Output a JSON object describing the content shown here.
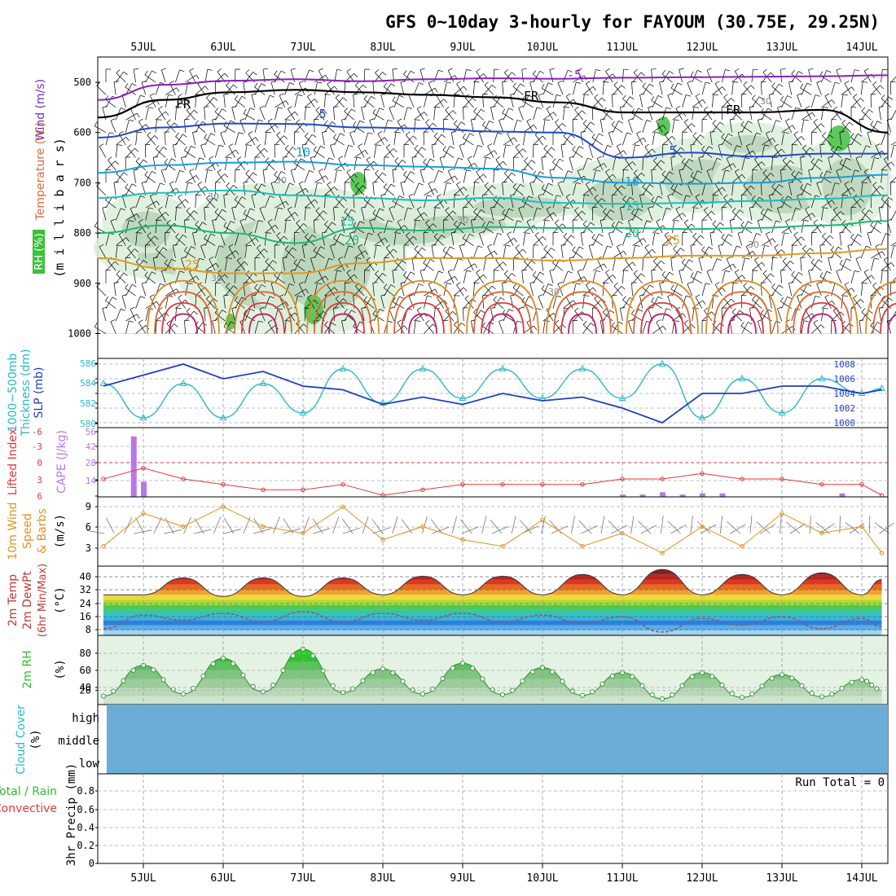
{
  "title": "GFS 0~10day 3-hourly for FAYOUM (30.75E, 29.25N)",
  "date_labels": [
    "5JUL",
    "6JUL",
    "7JUL",
    "8JUL",
    "9JUL",
    "10JUL",
    "11JUL",
    "12JUL",
    "13JUL",
    "14JUL"
  ],
  "colors": {
    "freezing": "#000000",
    "iso_m5": "#8a1fbf",
    "iso_5": "#1f49c9",
    "iso_10": "#159ee0",
    "iso_15": "#19bfbf",
    "iso_20": "#19b87a",
    "iso_25": "#e09a1f",
    "slp": "#1f3fbf",
    "thickness": "#2ab8c8",
    "lifted_index": "#e03a3a",
    "cape": "#b877e8",
    "wind": "#e0921f",
    "rh": "#2fbf2f",
    "cloud": "#6aaed8"
  },
  "panels": {
    "upper": {
      "ylabels": [
        "Wind (m/s)",
        "Temperature (°C)",
        "RH (%)",
        "(m i l l i b a r s)"
      ],
      "pressure_levels": [
        500,
        600,
        700,
        800,
        900,
        1000
      ],
      "contour_labels": {
        "freezing": "FR",
        "iso_m5": "-5",
        "iso_5": "5",
        "iso_10": "10",
        "iso_15": "15",
        "iso_20": "20",
        "iso_25": "25",
        "rh_30": "30"
      }
    },
    "slp": {
      "ylabels": [
        "1000~500mb",
        "Thickness (dm)",
        "SLP (mb)"
      ],
      "left_ticks": [
        "586",
        "584",
        "582",
        "580"
      ],
      "right_ticks": [
        "1008",
        "1006",
        "1004",
        "1002",
        "1000"
      ]
    },
    "cape": {
      "ylabels": [
        "Lifted Index",
        "CAPE (J/kg)"
      ],
      "left_ticks": [
        "-6",
        "-3",
        "0",
        "3",
        "6"
      ],
      "right_ticks": [
        "56",
        "42",
        "28",
        "14"
      ]
    },
    "wind10m": {
      "ylabels": [
        "10m Wind",
        "Speed",
        "& Barbs",
        "(m/s)"
      ],
      "ticks": [
        "9",
        "6",
        "3"
      ]
    },
    "temp2m": {
      "ylabels": [
        "2m Temp",
        "2m DewPt",
        "(6hr Min/Max)",
        "(°C)"
      ],
      "ticks": [
        "40",
        "32",
        "24",
        "16",
        "8"
      ]
    },
    "rh2m": {
      "ylabels": [
        "2m RH",
        "(%)"
      ],
      "ticks": [
        "80",
        "60",
        "40",
        "20"
      ]
    },
    "cloud": {
      "ylabels": [
        "Cloud Cover",
        "(%)"
      ],
      "levels": [
        "high",
        "middle",
        "low"
      ]
    },
    "precip": {
      "ylabels": [
        "Total / Rain",
        "Convective",
        "3hr Precip (mm)"
      ],
      "ticks": [
        "0.8",
        "0.6",
        "0.4",
        "0.2",
        "0"
      ],
      "run_total": "Run Total = 0"
    }
  },
  "chart_data": [
    {
      "type": "line",
      "name": "slp",
      "x": [
        "4JUL12",
        "5JUL00",
        "5JUL12",
        "6JUL00",
        "6JUL12",
        "7JUL00",
        "7JUL12",
        "8JUL00",
        "8JUL12",
        "9JUL00",
        "9JUL12",
        "10JUL00",
        "10JUL12",
        "11JUL00",
        "11JUL12",
        "12JUL00",
        "12JUL12",
        "13JUL00",
        "13JUL12",
        "14JUL00",
        "14JUL06"
      ],
      "values": [
        1005,
        1006.5,
        1008,
        1006,
        1007,
        1005,
        1004.5,
        1002.5,
        1003.5,
        1002.5,
        1004,
        1003,
        1003.5,
        1002,
        1000,
        1004,
        1004,
        1005,
        1005,
        1004,
        1004.5
      ],
      "ylim": [
        1000,
        1008
      ]
    },
    {
      "type": "line",
      "name": "thickness",
      "x": [
        "4JUL12",
        "5JUL00",
        "5JUL12",
        "6JUL00",
        "6JUL12",
        "7JUL00",
        "7JUL12",
        "8JUL00",
        "8JUL12",
        "9JUL00",
        "9JUL12",
        "10JUL00",
        "10JUL12",
        "11JUL00",
        "11JUL12",
        "12JUL00",
        "12JUL12",
        "13JUL00",
        "13JUL12",
        "14JUL00",
        "14JUL06"
      ],
      "values": [
        584,
        580.5,
        584,
        580.5,
        584,
        581,
        585.5,
        582,
        585.5,
        582.5,
        585.5,
        582.5,
        585.5,
        582.5,
        586,
        580.5,
        584.5,
        581,
        584.5,
        583,
        583.5
      ],
      "ylim": [
        580,
        586
      ]
    },
    {
      "type": "bar",
      "name": "cape",
      "x": [
        "4JUL21",
        "5JUL00",
        "11JUL00",
        "11JUL06",
        "11JUL12",
        "11JUL18",
        "12JUL00",
        "12JUL06",
        "13JUL18"
      ],
      "values": [
        52,
        13,
        2,
        2,
        4,
        2,
        3,
        3,
        3
      ],
      "ylim": [
        0,
        56
      ]
    },
    {
      "type": "line",
      "name": "lifted_index",
      "x": [
        "4JUL12",
        "5JUL00",
        "5JUL12",
        "6JUL00",
        "6JUL12",
        "7JUL00",
        "7JUL12",
        "8JUL00",
        "8JUL12",
        "9JUL00",
        "9JUL12",
        "10JUL00",
        "10JUL12",
        "11JUL00",
        "11JUL12",
        "12JUL00",
        "12JUL12",
        "13JUL00",
        "13JUL12",
        "14JUL00",
        "14JUL06"
      ],
      "values": [
        3,
        1,
        3,
        4,
        5,
        5,
        4,
        6,
        5,
        4,
        4,
        4,
        4,
        3,
        3,
        2,
        3,
        3,
        4,
        4,
        6
      ],
      "ylim": [
        6,
        -6
      ]
    },
    {
      "type": "line",
      "name": "wind_speed_10m",
      "x": [
        "4JUL12",
        "5JUL00",
        "5JUL12",
        "6JUL00",
        "6JUL12",
        "7JUL00",
        "7JUL12",
        "8JUL00",
        "8JUL12",
        "9JUL00",
        "9JUL12",
        "10JUL00",
        "10JUL12",
        "11JUL00",
        "11JUL12",
        "12JUL00",
        "12JUL12",
        "13JUL00",
        "13JUL12",
        "14JUL00",
        "14JUL06"
      ],
      "values": [
        3,
        8,
        6,
        9,
        6,
        5,
        9,
        4,
        6,
        4,
        3,
        7,
        3,
        5,
        2,
        6,
        3,
        8,
        5,
        6,
        2
      ],
      "ylim": [
        0,
        10.5
      ]
    },
    {
      "type": "area",
      "name": "temp_2m",
      "x": [
        "4JUL12",
        "5JUL00",
        "5JUL12",
        "6JUL00",
        "6JUL12",
        "7JUL00",
        "7JUL12",
        "8JUL00",
        "8JUL12",
        "9JUL00",
        "9JUL12",
        "10JUL00",
        "10JUL12",
        "11JUL00",
        "11JUL12",
        "12JUL00",
        "12JUL12",
        "13JUL00",
        "13JUL12",
        "14JUL00",
        "14JUL06"
      ],
      "values": [
        28,
        28,
        38,
        27,
        38,
        27,
        38,
        28,
        39,
        28,
        39,
        28,
        40,
        28,
        43,
        28,
        40,
        28,
        41,
        28,
        37
      ],
      "ylim": [
        4,
        44
      ]
    },
    {
      "type": "line",
      "name": "dewpoint_2m",
      "x": [
        "4JUL12",
        "5JUL00",
        "5JUL12",
        "6JUL00",
        "6JUL12",
        "7JUL00",
        "7JUL12",
        "8JUL00",
        "8JUL12",
        "9JUL00",
        "9JUL12",
        "10JUL00",
        "10JUL12",
        "11JUL00",
        "11JUL12",
        "12JUL00",
        "12JUL12",
        "13JUL00",
        "13JUL12",
        "14JUL00",
        "14JUL06"
      ],
      "values": [
        8,
        16,
        13,
        17,
        12,
        18,
        12,
        17,
        13,
        17,
        12,
        16,
        11,
        15,
        6,
        14,
        10,
        15,
        8,
        14,
        9
      ],
      "ylim": [
        4,
        44
      ]
    },
    {
      "type": "area",
      "name": "rh_2m",
      "x": [
        "4JUL12",
        "5JUL00",
        "5JUL12",
        "6JUL00",
        "6JUL12",
        "7JUL00",
        "7JUL12",
        "8JUL00",
        "8JUL12",
        "9JUL00",
        "9JUL12",
        "10JUL00",
        "10JUL12",
        "11JUL00",
        "11JUL12",
        "12JUL00",
        "12JUL12",
        "13JUL00",
        "13JUL12",
        "14JUL00",
        "14JUL06"
      ],
      "values": [
        12,
        55,
        15,
        65,
        18,
        78,
        17,
        50,
        15,
        58,
        14,
        52,
        13,
        45,
        8,
        45,
        10,
        42,
        11,
        35,
        20
      ],
      "ylim": [
        0,
        95
      ]
    },
    {
      "type": "bar",
      "name": "precip_3hr",
      "x": [],
      "values": [],
      "ylim": [
        0,
        1
      ]
    }
  ]
}
